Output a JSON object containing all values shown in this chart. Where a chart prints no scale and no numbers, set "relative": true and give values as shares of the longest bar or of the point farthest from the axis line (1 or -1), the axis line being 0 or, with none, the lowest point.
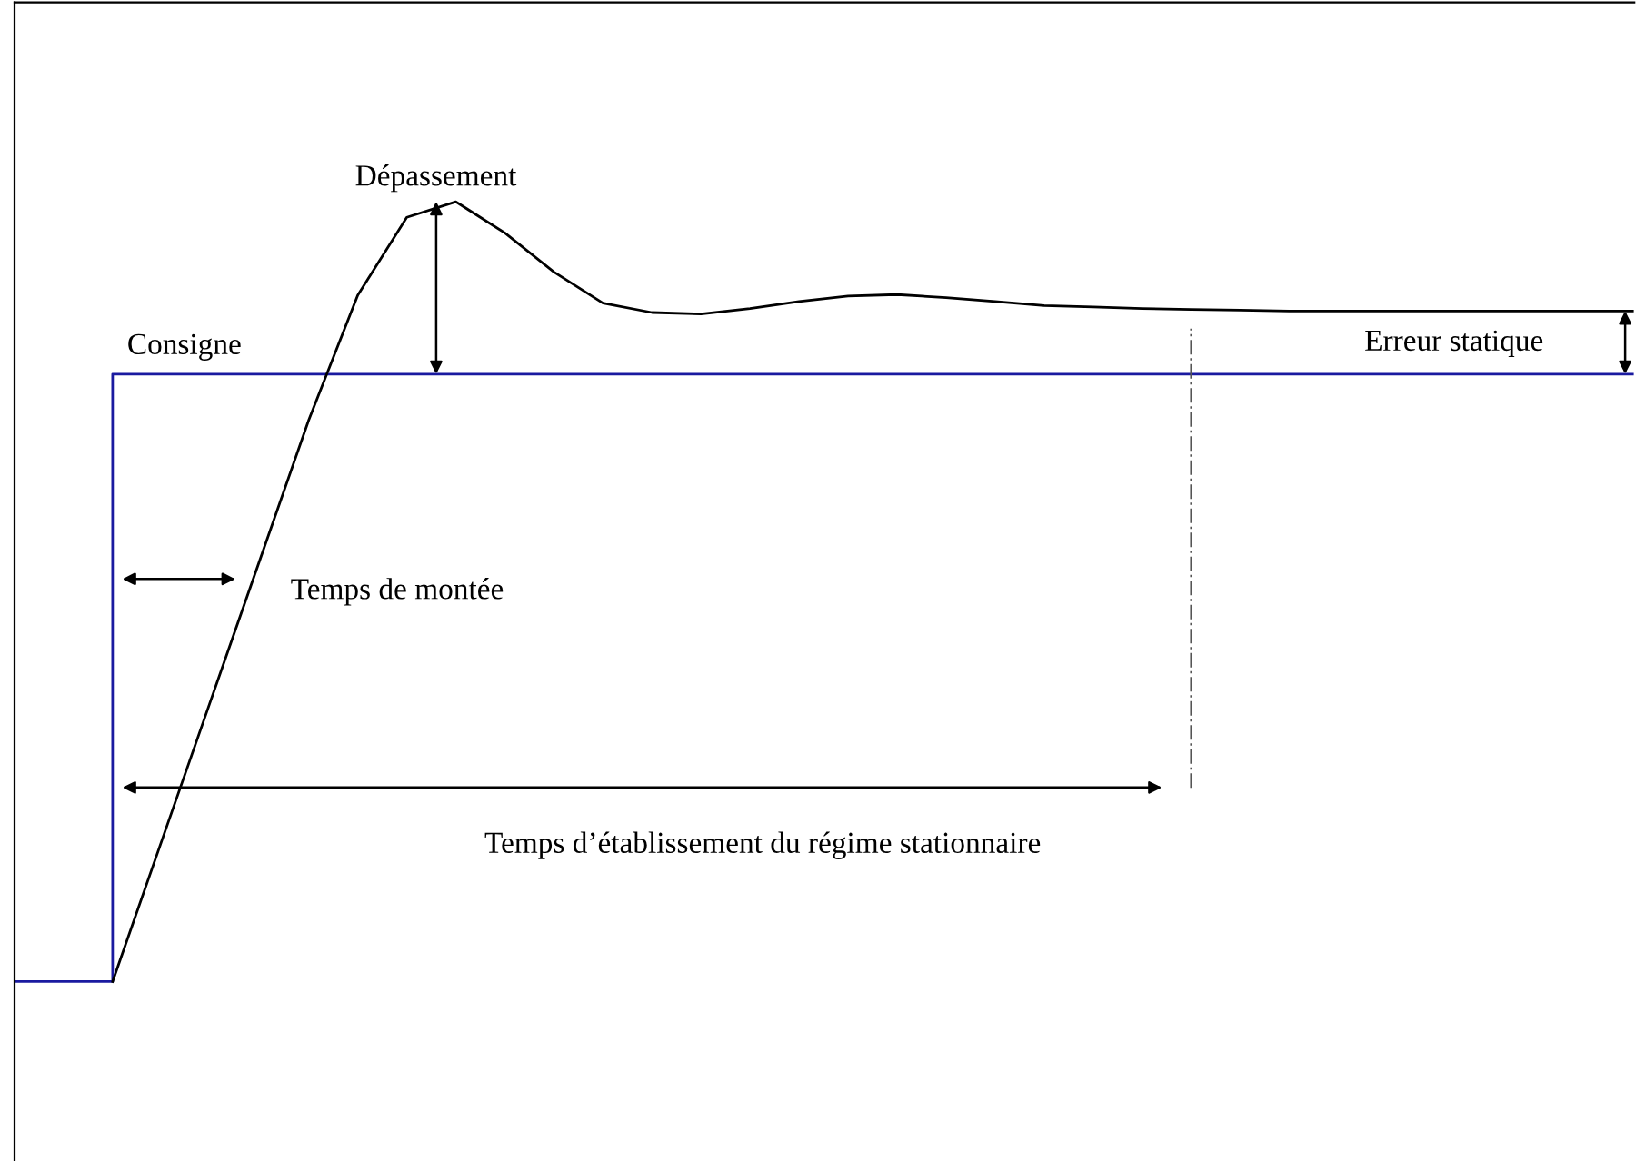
{
  "chart_data": {
    "type": "line",
    "relative": true,
    "categories": [
      null,
      null,
      null,
      null,
      null,
      null,
      null,
      null,
      null,
      null,
      null,
      null,
      null,
      null,
      null,
      null,
      null,
      null,
      null,
      null,
      null,
      null,
      null,
      null,
      null,
      null,
      null,
      null,
      null,
      null,
      null,
      null,
      null,
      null
    ],
    "series": [
      {
        "type": "step",
        "color": "#1a1aa0",
        "values": [
          0,
          0,
          0.779,
          0.779,
          0.779,
          0.779,
          0.779,
          0.779,
          0.779,
          0.779,
          0.779,
          0.779,
          0.779,
          0.779,
          0.779,
          0.779,
          0.779,
          0.779,
          0.779,
          0.779,
          0.779,
          0.779,
          0.779,
          0.779,
          0.779,
          0.779,
          0.779,
          0.779,
          0.779,
          0.779,
          0.779,
          0.779,
          0.779,
          0.779
        ]
      },
      {
        "color": "#000000",
        "values": [
          null,
          null,
          0,
          0.18,
          0.36,
          0.54,
          0.72,
          0.88,
          0.98,
          1,
          0.96,
          0.91,
          0.87,
          0.858,
          0.856,
          0.863,
          0.872,
          0.879,
          0.881,
          0.877,
          0.872,
          0.867,
          0.865,
          0.863,
          0.862,
          0.861,
          0.86,
          0.86,
          0.86,
          0.86,
          0.86,
          0.86,
          0.86,
          0.86
        ]
      }
    ],
    "annotations": [
      "Dépassement",
      "Consigne",
      "Erreur statique",
      "Temps de montée",
      "Temps d’établissement du régime stationnaire"
    ],
    "marker": "none",
    "line_style": "solid"
  }
}
